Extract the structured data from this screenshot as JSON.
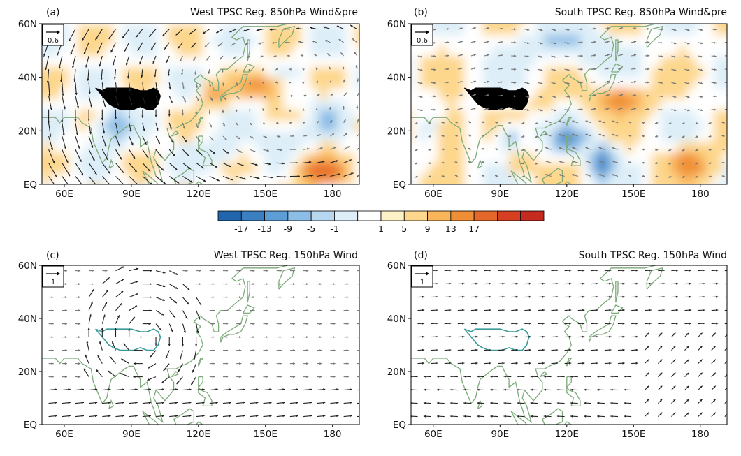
{
  "colorbar": {
    "labels": [
      "-17",
      "-13",
      "-9",
      "-5",
      "-1",
      "1",
      "5",
      "9",
      "13",
      "17"
    ],
    "colors": [
      "#2166ac",
      "#3a7fc2",
      "#5e9ed6",
      "#8cbde6",
      "#b7d7ef",
      "#ddeef8",
      "#ffffff",
      "#fdf1c6",
      "#fdd78c",
      "#f9b55a",
      "#f08e35",
      "#e5672a",
      "#d63f22",
      "#c42a1e"
    ]
  },
  "axes": {
    "x_ticks": [
      "60E",
      "90E",
      "120E",
      "150E",
      "180"
    ],
    "y_ticks": [
      "60N",
      "40N",
      "20N",
      "EQ"
    ]
  },
  "panels": [
    {
      "key": "a",
      "label": "(a)",
      "title": "West TPSC Reg. 850hPa Wind&pre",
      "ref_vector": "0.6",
      "kind": "precip_wind"
    },
    {
      "key": "b",
      "label": "(b)",
      "title": "South TPSC Reg. 850hPa Wind&pre",
      "ref_vector": "0.6",
      "kind": "precip_wind"
    },
    {
      "key": "c",
      "label": "(c)",
      "title": "West TPSC Reg. 150hPa Wind",
      "ref_vector": "1",
      "kind": "wind"
    },
    {
      "key": "d",
      "label": "(d)",
      "title": "South TPSC Reg. 150hPa Wind",
      "ref_vector": "1",
      "kind": "wind"
    }
  ],
  "colors": {
    "coast": "#7daa7a",
    "tibet_outline": "#3a9a9a",
    "tibet_fill": "#000000",
    "frame": "#000000"
  }
}
